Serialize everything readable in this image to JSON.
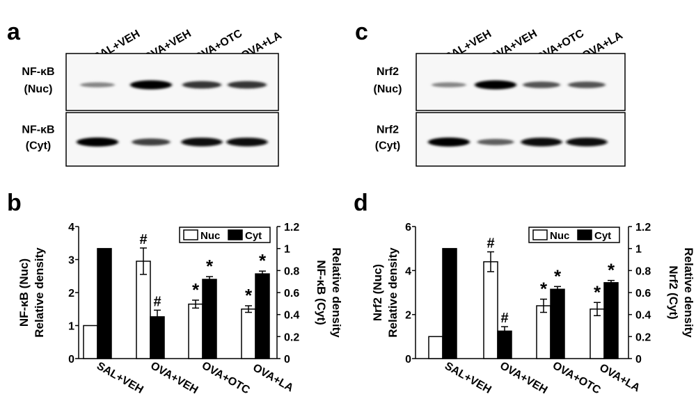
{
  "panels": {
    "a": {
      "letter": "a",
      "lanes": [
        "SAL+VEH",
        "OVA+VEH",
        "OVA+OTC",
        "OVA+LA"
      ],
      "blots": [
        {
          "label_line1": "NF-κB",
          "label_line2": "(Nuc)",
          "band_intensity": [
            0.35,
            1.0,
            0.75,
            0.75
          ]
        },
        {
          "label_line1": "NF-κB",
          "label_line2": "(Cyt)",
          "band_intensity": [
            1.0,
            0.7,
            0.95,
            0.95
          ]
        }
      ]
    },
    "c": {
      "letter": "c",
      "lanes": [
        "SAL+VEH",
        "OVA+VEH",
        "OVA+OTC",
        "OVA+LA"
      ],
      "blots": [
        {
          "label_line1": "Nrf2",
          "label_line2": "(Nuc)",
          "band_intensity": [
            0.35,
            1.0,
            0.6,
            0.6
          ]
        },
        {
          "label_line1": "Nrf2",
          "label_line2": "(Cyt)",
          "band_intensity": [
            1.0,
            0.55,
            0.95,
            0.95
          ]
        }
      ]
    }
  },
  "chart_data": [
    {
      "panel": "b",
      "type": "bar",
      "categories": [
        "SAL+VEH",
        "OVA+VEH",
        "OVA+OTC",
        "OVA+LA"
      ],
      "ylabel_left_line1": "NF-κB (Nuc)",
      "ylabel_left_line2": "Relative density",
      "ylabel_right_line1": "NF-κB (Cyt)",
      "ylabel_right_line2": "Relative density",
      "ylim_left": [
        0,
        4
      ],
      "yticks_left": [
        "0",
        "1",
        "2",
        "3",
        "4"
      ],
      "ylim_right": [
        0,
        1.2
      ],
      "yticks_right": [
        "0",
        "0.2",
        "0.4",
        "0.6",
        "0.8",
        "1",
        "1.2"
      ],
      "legend": {
        "nuc": "Nuc",
        "cyt": "Cyt",
        "position": "top-right"
      },
      "series": [
        {
          "name": "Nuc",
          "axis": "left",
          "values": [
            1.0,
            2.95,
            1.65,
            1.5
          ],
          "errors": [
            0,
            0.4,
            0.12,
            0.1
          ],
          "markers": [
            "",
            "#",
            "*",
            "*"
          ]
        },
        {
          "name": "Cyt",
          "axis": "right",
          "values": [
            1.0,
            0.38,
            0.72,
            0.77
          ],
          "errors": [
            0,
            0.06,
            0.025,
            0.025
          ],
          "markers": [
            "",
            "#",
            "*",
            "*"
          ]
        }
      ]
    },
    {
      "panel": "d",
      "type": "bar",
      "categories": [
        "SAL+VEH",
        "OVA+VEH",
        "OVA+OTC",
        "OVA+LA"
      ],
      "ylabel_left_line1": "Nrf2 (Nuc)",
      "ylabel_left_line2": "Relative density",
      "ylabel_right_line1": "Nrf2 (Cyt)",
      "ylabel_right_line2": "Relative density",
      "ylim_left": [
        0,
        6
      ],
      "yticks_left": [
        "0",
        "2",
        "4",
        "6"
      ],
      "ylim_right": [
        0,
        1.2
      ],
      "yticks_right": [
        "0",
        "0.2",
        "0.4",
        "0.6",
        "0.8",
        "1",
        "1.2"
      ],
      "legend": {
        "nuc": "Nuc",
        "cyt": "Cyt",
        "position": "top-right"
      },
      "series": [
        {
          "name": "Nuc",
          "axis": "left",
          "values": [
            1.0,
            4.4,
            2.4,
            2.25
          ],
          "errors": [
            0,
            0.45,
            0.3,
            0.3
          ],
          "markers": [
            "",
            "#",
            "*",
            "*"
          ]
        },
        {
          "name": "Cyt",
          "axis": "right",
          "values": [
            1.0,
            0.25,
            0.63,
            0.69
          ],
          "errors": [
            0,
            0.04,
            0.025,
            0.02
          ],
          "markers": [
            "",
            "#",
            "*",
            "*"
          ]
        }
      ]
    }
  ],
  "chart_letters": [
    "b",
    "d"
  ]
}
